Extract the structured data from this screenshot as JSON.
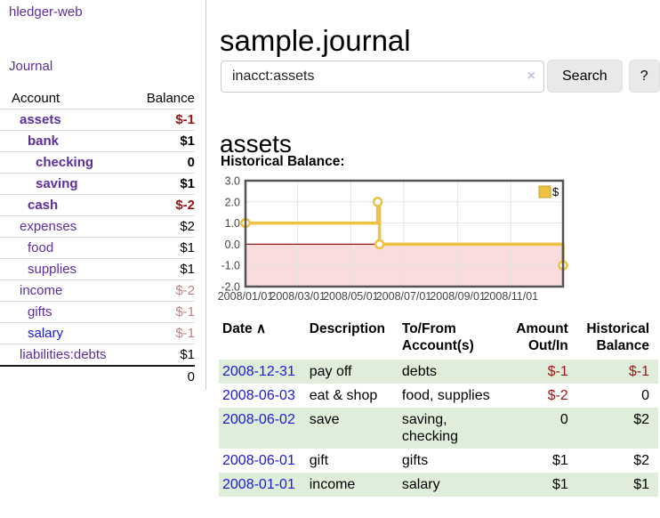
{
  "colors": {
    "link_purple": "#5c2d9e",
    "link_blue": "#1a1ad6",
    "negative_strong": "#9d1313",
    "negative_dim": "#c08080",
    "row_stripe_green": "#dfeeda",
    "chart_line_gold": "#EDC240",
    "chart_negative_region": "#fadcdc",
    "chart_zero_line": "#8b1a1a"
  },
  "sidebar": {
    "brand": "hledger-web",
    "nav": {
      "journal": "Journal"
    },
    "table": {
      "account_header": "Account",
      "balance_header": "Balance"
    },
    "accounts": [
      {
        "name": "assets",
        "depth": 1,
        "bold": true,
        "balance": "$-1",
        "balance_class": "neg-strong",
        "link_color": "purple"
      },
      {
        "name": "bank",
        "depth": 2,
        "bold": true,
        "balance": "$1",
        "balance_class": "pos-strong",
        "link_color": "purple"
      },
      {
        "name": "checking",
        "depth": 3,
        "bold": true,
        "balance": "0",
        "balance_class": "pos-strong",
        "link_color": "purple"
      },
      {
        "name": "saving",
        "depth": 3,
        "bold": true,
        "balance": "$1",
        "balance_class": "pos-strong",
        "link_color": "purple"
      },
      {
        "name": "cash",
        "depth": 2,
        "bold": true,
        "balance": "$-2",
        "balance_class": "neg-strong",
        "link_color": "purple"
      },
      {
        "name": "expenses",
        "depth": 1,
        "bold": false,
        "balance": "$2",
        "balance_class": "pos",
        "link_color": "purple"
      },
      {
        "name": "food",
        "depth": 2,
        "bold": false,
        "balance": "$1",
        "balance_class": "pos",
        "link_color": "purple"
      },
      {
        "name": "supplies",
        "depth": 2,
        "bold": false,
        "balance": "$1",
        "balance_class": "pos",
        "link_color": "purple"
      },
      {
        "name": "income",
        "depth": 1,
        "bold": false,
        "balance": "$-2",
        "balance_class": "neg-dim",
        "link_color": "purple"
      },
      {
        "name": "gifts",
        "depth": 2,
        "bold": false,
        "balance": "$-1",
        "balance_class": "neg-dim",
        "link_color": "purple"
      },
      {
        "name": "salary",
        "depth": 2,
        "bold": false,
        "balance": "$-1",
        "balance_class": "neg-dim",
        "link_color": "blue"
      },
      {
        "name": "liabilities:debts",
        "depth": 1,
        "bold": false,
        "balance": "$1",
        "balance_class": "pos",
        "link_color": "purple"
      }
    ],
    "total": "0"
  },
  "main": {
    "title": "sample.journal",
    "search": {
      "value": "inacct:assets",
      "clear_icon": "×",
      "search_button": "Search",
      "help_button": "?"
    },
    "account_heading": "assets",
    "chart_heading": "Historical Balance:"
  },
  "chart_data": {
    "type": "line",
    "step": true,
    "title": "Historical Balance",
    "xrange": [
      "2008-01-01",
      "2008-12-31"
    ],
    "ylim": [
      -2,
      3
    ],
    "series": [
      {
        "name": "$",
        "color": "#EDC240",
        "points": [
          [
            "2008-01-01",
            1
          ],
          [
            "2008-06-01",
            2
          ],
          [
            "2008-06-03",
            0
          ],
          [
            "2008-12-31",
            -1
          ]
        ]
      }
    ],
    "yticks": [
      {
        "v": 3,
        "label": "3.0"
      },
      {
        "v": 2,
        "label": "2.0"
      },
      {
        "v": 1,
        "label": "1.0"
      },
      {
        "v": 0,
        "label": "0.0"
      },
      {
        "v": -1,
        "label": "-1.0"
      },
      {
        "v": -2,
        "label": "-2.0"
      }
    ],
    "xticks": [
      {
        "date": "2008-01-01",
        "label": "2008/01/01"
      },
      {
        "date": "2008-03-01",
        "label": "2008/03/01"
      },
      {
        "date": "2008-05-01",
        "label": "2008/05/01"
      },
      {
        "date": "2008-07-01",
        "label": "2008/07/01"
      },
      {
        "date": "2008-09-01",
        "label": "2008/09/01"
      },
      {
        "date": "2008-11-01",
        "label": "2008/11/01"
      }
    ],
    "legend": "$",
    "legend_position": "top-right",
    "grid": true,
    "negative_region_fill": "#fadcdc",
    "zero_line_color": "#8b1a1a"
  },
  "register": {
    "headers": [
      {
        "label": "Date",
        "sort_icon": "∧"
      },
      {
        "label": "Description"
      },
      {
        "label": "To/From\nAccount(s)"
      },
      {
        "label": "Amount\nOut/In"
      },
      {
        "label": "Historical\nBalance"
      }
    ],
    "rows": [
      {
        "date": "2008-12-31",
        "description": "pay off",
        "accounts": "debts",
        "amount": "$-1",
        "amount_negative": true,
        "balance": "$-1",
        "balance_negative": true,
        "shaded": true
      },
      {
        "date": "2008-06-03",
        "description": "eat & shop",
        "accounts": "food, supplies",
        "amount": "$-2",
        "amount_negative": true,
        "balance": "0",
        "balance_negative": false,
        "shaded": false
      },
      {
        "date": "2008-06-02",
        "description": "save",
        "accounts": "saving,\nchecking",
        "amount": "0",
        "amount_negative": false,
        "balance": "$2",
        "balance_negative": false,
        "shaded": true
      },
      {
        "date": "2008-06-01",
        "description": "gift",
        "accounts": "gifts",
        "amount": "$1",
        "amount_negative": false,
        "balance": "$2",
        "balance_negative": false,
        "shaded": false
      },
      {
        "date": "2008-01-01",
        "description": "income",
        "accounts": "salary",
        "amount": "$1",
        "amount_negative": false,
        "balance": "$1",
        "balance_negative": false,
        "shaded": true
      }
    ]
  }
}
